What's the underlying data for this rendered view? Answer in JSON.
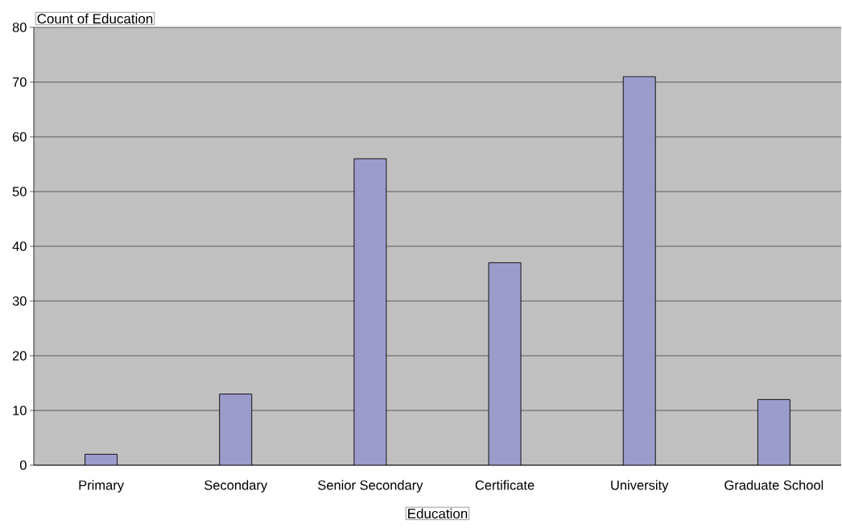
{
  "chart_data": {
    "type": "bar",
    "ylabel": "Count of Education",
    "xlabel": "Education",
    "categories": [
      "Primary",
      "Secondary",
      "Senior Secondary",
      "Certificate",
      "University",
      "Graduate School"
    ],
    "values": [
      2,
      13,
      56,
      37,
      71,
      12
    ],
    "color": "#9c9ccc",
    "ylim": [
      0,
      80
    ],
    "yticks": [
      0,
      10,
      20,
      30,
      40,
      50,
      60,
      70,
      80
    ],
    "grid": "y"
  }
}
